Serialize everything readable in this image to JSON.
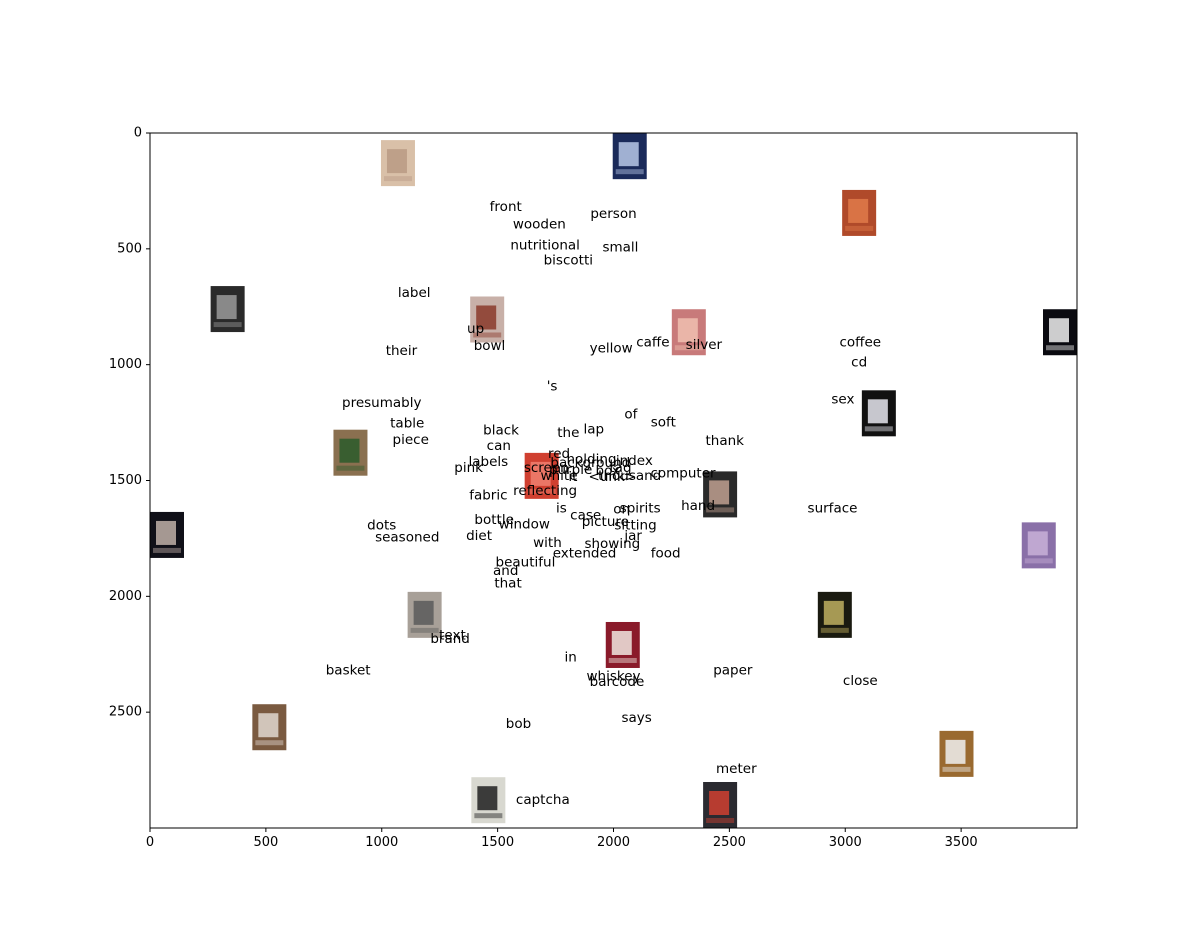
{
  "chart_data": {
    "type": "scatter",
    "title": "",
    "xlabel": "",
    "ylabel": "",
    "xlim": [
      0,
      4000
    ],
    "ylim": [
      3000,
      0
    ],
    "grid": false,
    "x_ticks": [
      0,
      500,
      1000,
      1500,
      2000,
      2500,
      3000,
      3500
    ],
    "y_ticks": [
      0,
      500,
      1000,
      1500,
      2000,
      2500
    ],
    "words": [
      {
        "text": "front",
        "x": 1535,
        "y": 320
      },
      {
        "text": "person",
        "x": 2000,
        "y": 350
      },
      {
        "text": "wooden",
        "x": 1680,
        "y": 395
      },
      {
        "text": "nutritional",
        "x": 1705,
        "y": 485
      },
      {
        "text": "small",
        "x": 2030,
        "y": 495
      },
      {
        "text": "biscotti",
        "x": 1805,
        "y": 550
      },
      {
        "text": "label",
        "x": 1140,
        "y": 690
      },
      {
        "text": "up",
        "x": 1405,
        "y": 845
      },
      {
        "text": "bowl",
        "x": 1465,
        "y": 920
      },
      {
        "text": "caffe",
        "x": 2170,
        "y": 905
      },
      {
        "text": "silver",
        "x": 2390,
        "y": 915
      },
      {
        "text": "coffee",
        "x": 3065,
        "y": 905
      },
      {
        "text": "their",
        "x": 1085,
        "y": 940
      },
      {
        "text": "yellow",
        "x": 1990,
        "y": 930
      },
      {
        "text": "cd",
        "x": 3060,
        "y": 990
      },
      {
        "text": "'s",
        "x": 1735,
        "y": 1095
      },
      {
        "text": "sex",
        "x": 2990,
        "y": 1150
      },
      {
        "text": "presumably",
        "x": 1000,
        "y": 1165
      },
      {
        "text": "of",
        "x": 2075,
        "y": 1215
      },
      {
        "text": "soft",
        "x": 2215,
        "y": 1250
      },
      {
        "text": "table",
        "x": 1110,
        "y": 1255
      },
      {
        "text": "black",
        "x": 1515,
        "y": 1285
      },
      {
        "text": "lap",
        "x": 1915,
        "y": 1280
      },
      {
        "text": "the",
        "x": 1805,
        "y": 1295
      },
      {
        "text": "piece",
        "x": 1125,
        "y": 1325
      },
      {
        "text": "thank",
        "x": 2480,
        "y": 1330
      },
      {
        "text": "can",
        "x": 1505,
        "y": 1350
      },
      {
        "text": "red",
        "x": 1765,
        "y": 1385
      },
      {
        "text": "holding",
        "x": 1905,
        "y": 1410
      },
      {
        "text": "index",
        "x": 2090,
        "y": 1415
      },
      {
        "text": "labels",
        "x": 1460,
        "y": 1420
      },
      {
        "text": "background",
        "x": 1900,
        "y": 1425
      },
      {
        "text": "pink",
        "x": 1375,
        "y": 1445
      },
      {
        "text": "screen",
        "x": 1710,
        "y": 1445
      },
      {
        "text": "tag",
        "x": 2030,
        "y": 1445
      },
      {
        "text": "purple",
        "x": 1815,
        "y": 1455
      },
      {
        "text": "box",
        "x": 1975,
        "y": 1460
      },
      {
        "text": "computer",
        "x": 2300,
        "y": 1470
      },
      {
        "text": "white",
        "x": 1765,
        "y": 1480
      },
      {
        "text": "it",
        "x": 1825,
        "y": 1485
      },
      {
        "text": "thousand",
        "x": 2070,
        "y": 1480
      },
      {
        "text": "<unk>",
        "x": 1995,
        "y": 1485
      },
      {
        "text": "fabric",
        "x": 1460,
        "y": 1565
      },
      {
        "text": "reflecting",
        "x": 1705,
        "y": 1545
      },
      {
        "text": "hand",
        "x": 2365,
        "y": 1610
      },
      {
        "text": "surface",
        "x": 2945,
        "y": 1620
      },
      {
        "text": "spirits",
        "x": 2115,
        "y": 1620
      },
      {
        "text": "is",
        "x": 1775,
        "y": 1620
      },
      {
        "text": "on",
        "x": 2035,
        "y": 1625
      },
      {
        "text": "case",
        "x": 1880,
        "y": 1650
      },
      {
        "text": "bottle",
        "x": 1485,
        "y": 1670
      },
      {
        "text": "picture",
        "x": 1965,
        "y": 1680
      },
      {
        "text": "window",
        "x": 1615,
        "y": 1690
      },
      {
        "text": "sitting",
        "x": 2095,
        "y": 1695
      },
      {
        "text": "dots",
        "x": 1000,
        "y": 1695
      },
      {
        "text": "diet",
        "x": 1420,
        "y": 1740
      },
      {
        "text": "seasoned",
        "x": 1110,
        "y": 1745
      },
      {
        "text": "jar",
        "x": 2085,
        "y": 1740
      },
      {
        "text": "with",
        "x": 1715,
        "y": 1770
      },
      {
        "text": "showing",
        "x": 1995,
        "y": 1775
      },
      {
        "text": "food",
        "x": 2225,
        "y": 1815
      },
      {
        "text": "extended",
        "x": 1875,
        "y": 1815
      },
      {
        "text": "beautiful",
        "x": 1620,
        "y": 1855
      },
      {
        "text": "and",
        "x": 1535,
        "y": 1890
      },
      {
        "text": "that",
        "x": 1545,
        "y": 1945
      },
      {
        "text": "text",
        "x": 1305,
        "y": 2170
      },
      {
        "text": "brand",
        "x": 1295,
        "y": 2185
      },
      {
        "text": "in",
        "x": 1815,
        "y": 2265
      },
      {
        "text": "basket",
        "x": 855,
        "y": 2320
      },
      {
        "text": "paper",
        "x": 2515,
        "y": 2320
      },
      {
        "text": "whiskey",
        "x": 2000,
        "y": 2345
      },
      {
        "text": "close",
        "x": 3065,
        "y": 2365
      },
      {
        "text": "barcode",
        "x": 2015,
        "y": 2370
      },
      {
        "text": "says",
        "x": 2100,
        "y": 2525
      },
      {
        "text": "bob",
        "x": 1590,
        "y": 2550
      },
      {
        "text": "meter",
        "x": 2530,
        "y": 2745
      },
      {
        "text": "captcha",
        "x": 1695,
        "y": 2880
      }
    ],
    "image_thumbnails": [
      {
        "name": "pale-figure-photo",
        "x": 1070,
        "y": 130,
        "color": "#d9c0a8",
        "accent": "#b89a84"
      },
      {
        "name": "computer-screen-photo",
        "x": 2070,
        "y": 100,
        "color": "#1a2a5a",
        "accent": "#b8c8e8"
      },
      {
        "name": "orange-texture-photo",
        "x": 3060,
        "y": 345,
        "color": "#b04a2a",
        "accent": "#e07a4a"
      },
      {
        "name": "bottle-tin-photo",
        "x": 335,
        "y": 760,
        "color": "#2a2a2a",
        "accent": "#9a9a9a"
      },
      {
        "name": "label-bottle-photo",
        "x": 1455,
        "y": 805,
        "color": "#c8b0a8",
        "accent": "#8a3a2a"
      },
      {
        "name": "pink-blur-photo",
        "x": 2325,
        "y": 860,
        "color": "#c87a7a",
        "accent": "#f0c0b0"
      },
      {
        "name": "dark-light-photo",
        "x": 3930,
        "y": 860,
        "color": "#0a0a10",
        "accent": "#f0f0f0"
      },
      {
        "name": "screen-glow-photo",
        "x": 3145,
        "y": 1210,
        "color": "#111111",
        "accent": "#e8e8f0"
      },
      {
        "name": "green-bottle-photo",
        "x": 865,
        "y": 1380,
        "color": "#8a7050",
        "accent": "#2a5a2a"
      },
      {
        "name": "red-can-photo",
        "x": 1690,
        "y": 1480,
        "color": "#d04030",
        "accent": "#f08070"
      },
      {
        "name": "device-photo",
        "x": 2460,
        "y": 1560,
        "color": "#2a2a2a",
        "accent": "#c0a090"
      },
      {
        "name": "hand-photo",
        "x": 70,
        "y": 1735,
        "color": "#101018",
        "accent": "#c0b0a8"
      },
      {
        "name": "purple-jar-photo",
        "x": 3835,
        "y": 1780,
        "color": "#8a70a8",
        "accent": "#c8b0d8"
      },
      {
        "name": "grey-fabric-photo",
        "x": 1185,
        "y": 2080,
        "color": "#a8a098",
        "accent": "#5a5a5a"
      },
      {
        "name": "dark-box-photo",
        "x": 2955,
        "y": 2080,
        "color": "#1a1a10",
        "accent": "#c0b060"
      },
      {
        "name": "whiskey-bottle-photo",
        "x": 2040,
        "y": 2210,
        "color": "#8a1a2a",
        "accent": "#f0e8e0"
      },
      {
        "name": "table-items-photo",
        "x": 515,
        "y": 2565,
        "color": "#7a5a40",
        "accent": "#e0d8d0"
      },
      {
        "name": "card-wood-photo",
        "x": 3480,
        "y": 2680,
        "color": "#9a6a30",
        "accent": "#f0f0f0"
      },
      {
        "name": "paper-photo",
        "x": 1460,
        "y": 2880,
        "color": "#d8d8d0",
        "accent": "#202020"
      },
      {
        "name": "meter-photo",
        "x": 2460,
        "y": 2905,
        "color": "#2a2a30",
        "accent": "#d04030"
      }
    ]
  }
}
